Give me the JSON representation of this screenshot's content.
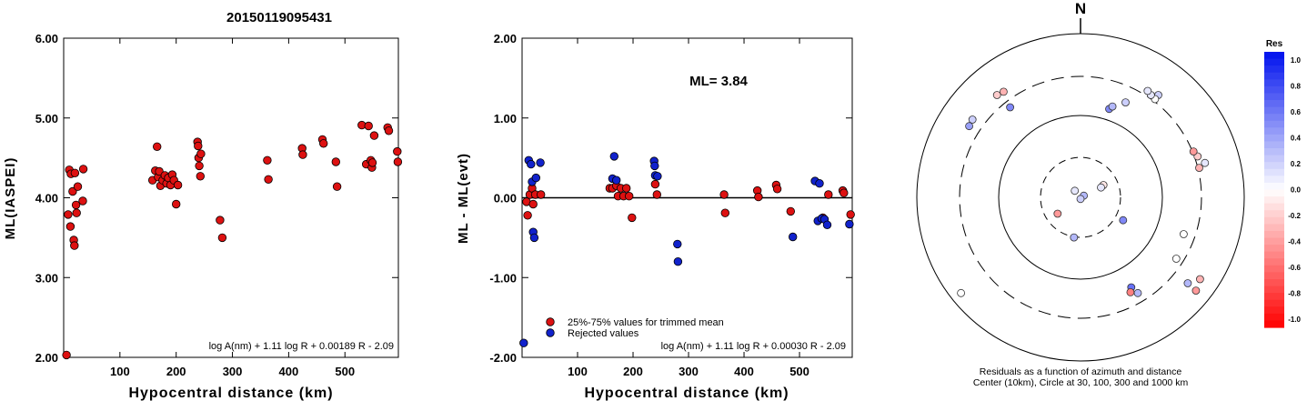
{
  "figure_title": "20150119095431",
  "chart_data": [
    {
      "type": "scatter",
      "ylabel": "ML(IASPEI)",
      "xlabel": "Hypocentral distance (km)",
      "xlim": [
        0,
        595
      ],
      "ylim": [
        2.0,
        6.0
      ],
      "x_ticks": [
        "100",
        "200",
        "300",
        "400",
        "500"
      ],
      "y_ticks": [
        "2.00",
        "3.00",
        "4.00",
        "5.00",
        "6.00"
      ],
      "formula": "log A(nm) + 1.11 log R + 0.00189 R - 2.09",
      "color": "#dd1111",
      "points": [
        [
          5,
          2.03
        ],
        [
          8,
          3.79
        ],
        [
          10,
          4.35
        ],
        [
          12,
          3.64
        ],
        [
          13,
          4.3
        ],
        [
          16,
          4.08
        ],
        [
          18,
          3.47
        ],
        [
          19,
          3.4
        ],
        [
          20,
          4.31
        ],
        [
          22,
          3.91
        ],
        [
          23,
          3.81
        ],
        [
          25,
          4.14
        ],
        [
          34,
          3.96
        ],
        [
          35,
          4.36
        ],
        [
          158,
          4.22
        ],
        [
          163,
          4.34
        ],
        [
          166,
          4.64
        ],
        [
          168,
          4.26
        ],
        [
          170,
          4.33
        ],
        [
          172,
          4.15
        ],
        [
          176,
          4.22
        ],
        [
          180,
          4.28
        ],
        [
          183,
          4.18
        ],
        [
          186,
          4.25
        ],
        [
          190,
          4.16
        ],
        [
          193,
          4.29
        ],
        [
          196,
          4.22
        ],
        [
          200,
          3.92
        ],
        [
          203,
          4.16
        ],
        [
          238,
          4.7
        ],
        [
          239,
          4.65
        ],
        [
          240,
          4.5
        ],
        [
          241,
          4.4
        ],
        [
          243,
          4.27
        ],
        [
          244,
          4.55
        ],
        [
          278,
          3.72
        ],
        [
          282,
          3.5
        ],
        [
          362,
          4.47
        ],
        [
          364,
          4.23
        ],
        [
          424,
          4.62
        ],
        [
          425,
          4.54
        ],
        [
          460,
          4.73
        ],
        [
          462,
          4.68
        ],
        [
          484,
          4.45
        ],
        [
          486,
          4.14
        ],
        [
          530,
          4.91
        ],
        [
          538,
          4.42
        ],
        [
          542,
          4.9
        ],
        [
          546,
          4.47
        ],
        [
          548,
          4.38
        ],
        [
          549,
          4.44
        ],
        [
          552,
          4.78
        ],
        [
          576,
          4.88
        ],
        [
          578,
          4.84
        ],
        [
          593,
          4.58
        ],
        [
          594,
          4.45
        ]
      ]
    },
    {
      "type": "scatter",
      "ylabel": "ML - ML(evt)",
      "xlabel": "Hypocentral distance (km)",
      "xlim": [
        0,
        595
      ],
      "ylim": [
        -2.0,
        2.0
      ],
      "x_ticks": [
        "100",
        "200",
        "300",
        "400",
        "500"
      ],
      "y_ticks": [
        "-2.00",
        "-1.00",
        "0.00",
        "1.00",
        "2.00"
      ],
      "annotation": "ML= 3.84",
      "formula": "log A(nm) + 1.11 log R + 0.00030 R - 2.09",
      "legend": [
        "25%-75% values for trimmed mean",
        "Rejected values"
      ],
      "colors": {
        "used": "#dd1111",
        "rejected": "#1122cc"
      },
      "used": [
        [
          8,
          -0.05
        ],
        [
          10,
          -0.22
        ],
        [
          14,
          0.04
        ],
        [
          18,
          0.12
        ],
        [
          20,
          -0.08
        ],
        [
          24,
          0.04
        ],
        [
          34,
          0.04
        ],
        [
          158,
          0.12
        ],
        [
          163,
          0.12
        ],
        [
          170,
          0.15
        ],
        [
          173,
          0.02
        ],
        [
          178,
          0.12
        ],
        [
          183,
          0.02
        ],
        [
          188,
          0.12
        ],
        [
          193,
          0.02
        ],
        [
          198,
          -0.25
        ],
        [
          240,
          0.17
        ],
        [
          243,
          0.04
        ],
        [
          364,
          0.04
        ],
        [
          366,
          -0.19
        ],
        [
          424,
          0.09
        ],
        [
          426,
          0.01
        ],
        [
          458,
          0.16
        ],
        [
          460,
          0.11
        ],
        [
          484,
          -0.17
        ],
        [
          542,
          -0.25
        ],
        [
          552,
          0.04
        ],
        [
          578,
          0.09
        ],
        [
          580,
          0.06
        ],
        [
          592,
          -0.21
        ]
      ],
      "rejected": [
        [
          3,
          -1.82
        ],
        [
          12,
          0.47
        ],
        [
          16,
          0.42
        ],
        [
          18,
          0.2
        ],
        [
          20,
          -0.43
        ],
        [
          22,
          -0.5
        ],
        [
          25,
          0.25
        ],
        [
          33,
          0.44
        ],
        [
          163,
          0.24
        ],
        [
          166,
          0.52
        ],
        [
          170,
          0.22
        ],
        [
          238,
          0.46
        ],
        [
          239,
          0.4
        ],
        [
          240,
          0.28
        ],
        [
          244,
          0.27
        ],
        [
          280,
          -0.58
        ],
        [
          281,
          -0.8
        ],
        [
          488,
          -0.49
        ],
        [
          528,
          0.21
        ],
        [
          533,
          -0.29
        ],
        [
          536,
          0.18
        ],
        [
          540,
          -0.26
        ],
        [
          545,
          -0.27
        ],
        [
          550,
          -0.34
        ],
        [
          590,
          -0.33
        ]
      ]
    },
    {
      "type": "polar_scatter",
      "north_label": "N",
      "caption": [
        "Residuals as a function of azimuth and distance",
        "Center (10km), Circle at 30, 100, 300 and 1000 km"
      ],
      "colorbar": {
        "title": "Res",
        "labels": [
          "1.0",
          "0.8",
          "0.6",
          "0.4",
          "0.2",
          "0.0",
          "-0.2",
          "-0.4",
          "-0.6",
          "-0.8",
          "-1.0"
        ],
        "max_color": "#0011ee",
        "min_color": "#ff0000"
      },
      "rings_km": [
        30,
        100,
        300,
        1000
      ],
      "points_dxdy": [
        [
          -0.07,
          -0.08,
          0.1
        ],
        [
          0.04,
          -0.02,
          0.3
        ],
        [
          0.0,
          0.02,
          0.2
        ],
        [
          0.28,
          -0.15,
          -0.1
        ],
        [
          0.25,
          -0.12,
          0.1
        ],
        [
          0.52,
          0.28,
          0.5
        ],
        [
          -0.28,
          0.2,
          -0.4
        ],
        [
          -0.08,
          0.49,
          0.3
        ],
        [
          0.62,
          1.1,
          0.6
        ],
        [
          -1.02,
          -1.25,
          -0.2
        ],
        [
          -0.94,
          -1.29,
          -0.3
        ],
        [
          -0.86,
          -1.1,
          0.5
        ],
        [
          -1.32,
          -0.95,
          0.2
        ],
        [
          -1.36,
          -0.87,
          0.4
        ],
        [
          -1.46,
          1.17,
          0.0
        ],
        [
          1.45,
          -0.36,
          -0.3
        ],
        [
          1.26,
          0.45,
          0.0
        ],
        [
          1.43,
          -0.5,
          -0.2
        ],
        [
          1.52,
          -0.42,
          0.1
        ],
        [
          1.38,
          -0.56,
          -0.4
        ],
        [
          1.17,
          0.75,
          0.0
        ],
        [
          1.31,
          1.05,
          0.3
        ],
        [
          0.7,
          1.17,
          0.3
        ],
        [
          0.61,
          1.16,
          -0.5
        ],
        [
          0.95,
          -1.25,
          0.2
        ],
        [
          0.91,
          -1.2,
          0.0
        ],
        [
          0.86,
          -1.25,
          0.1
        ],
        [
          0.82,
          -1.3,
          0.1
        ],
        [
          0.55,
          -1.16,
          0.2
        ],
        [
          0.35,
          -1.08,
          0.5
        ],
        [
          0.39,
          -1.11,
          0.3
        ],
        [
          1.41,
          1.14,
          -0.4
        ],
        [
          1.46,
          1.0,
          -0.3
        ]
      ]
    }
  ]
}
